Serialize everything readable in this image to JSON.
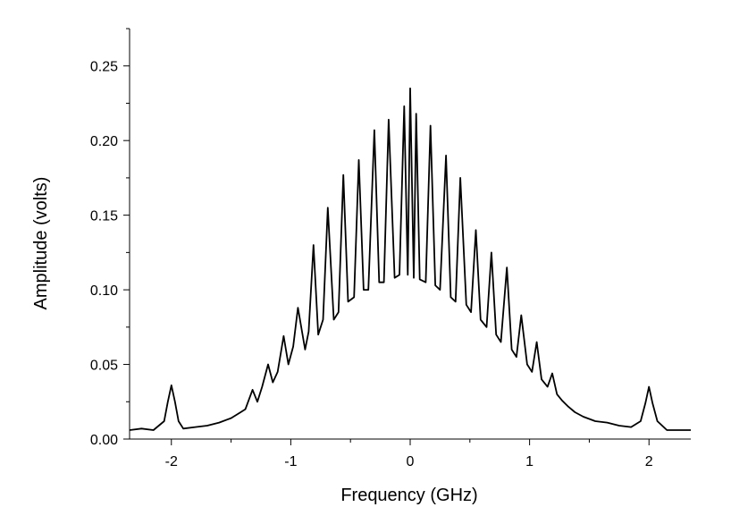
{
  "chart_data": {
    "type": "line",
    "title": "",
    "xlabel": "Frequency (GHz)",
    "ylabel": "Amplitude (volts)",
    "xlim": [
      -2.35,
      2.35
    ],
    "ylim": [
      0,
      0.275
    ],
    "xticks": [
      {
        "value": -2,
        "label": "-2"
      },
      {
        "value": -1,
        "label": "-1"
      },
      {
        "value": 0,
        "label": "0"
      },
      {
        "value": 1,
        "label": "1"
      },
      {
        "value": 2,
        "label": "2"
      }
    ],
    "yticks": [
      {
        "value": 0.0,
        "label": "0.00"
      },
      {
        "value": 0.05,
        "label": "0.05"
      },
      {
        "value": 0.1,
        "label": "0.10"
      },
      {
        "value": 0.15,
        "label": "0.15"
      },
      {
        "value": 0.2,
        "label": "0.20"
      },
      {
        "value": 0.25,
        "label": "0.25"
      }
    ],
    "grid": false,
    "legend": "none",
    "line_color": "#000000",
    "series": [
      {
        "x": [
          -2.35,
          -2.25,
          -2.15,
          -2.06,
          -2.03,
          -2.0,
          -1.97,
          -1.94,
          -1.9,
          -1.8,
          -1.7,
          -1.6,
          -1.5,
          -1.42,
          -1.38,
          -1.32,
          -1.28,
          -1.24,
          -1.19,
          -1.15,
          -1.11,
          -1.06,
          -1.02,
          -0.98,
          -0.94,
          -0.88,
          -0.85,
          -0.81,
          -0.77,
          -0.73,
          -0.69,
          -0.64,
          -0.6,
          -0.56,
          -0.52,
          -0.47,
          -0.43,
          -0.39,
          -0.35,
          -0.3,
          -0.26,
          -0.22,
          -0.18,
          -0.13,
          -0.09,
          -0.05,
          -0.02,
          0.0,
          0.03,
          0.05,
          0.08,
          0.13,
          0.17,
          0.21,
          0.25,
          0.3,
          0.34,
          0.38,
          0.42,
          0.47,
          0.51,
          0.55,
          0.59,
          0.64,
          0.68,
          0.72,
          0.76,
          0.81,
          0.85,
          0.89,
          0.93,
          0.98,
          1.02,
          1.06,
          1.1,
          1.15,
          1.19,
          1.23,
          1.27,
          1.32,
          1.38,
          1.45,
          1.55,
          1.65,
          1.75,
          1.85,
          1.93,
          1.97,
          2.0,
          2.03,
          2.07,
          2.15,
          2.25,
          2.35
        ],
        "y": [
          0.006,
          0.007,
          0.006,
          0.012,
          0.025,
          0.036,
          0.025,
          0.012,
          0.007,
          0.008,
          0.009,
          0.011,
          0.014,
          0.018,
          0.02,
          0.033,
          0.025,
          0.035,
          0.05,
          0.038,
          0.045,
          0.069,
          0.05,
          0.062,
          0.088,
          0.06,
          0.072,
          0.13,
          0.07,
          0.08,
          0.155,
          0.08,
          0.085,
          0.177,
          0.092,
          0.095,
          0.187,
          0.1,
          0.1,
          0.207,
          0.105,
          0.105,
          0.214,
          0.108,
          0.11,
          0.223,
          0.11,
          0.235,
          0.108,
          0.218,
          0.107,
          0.105,
          0.21,
          0.103,
          0.1,
          0.19,
          0.095,
          0.092,
          0.175,
          0.09,
          0.085,
          0.14,
          0.08,
          0.075,
          0.125,
          0.07,
          0.065,
          0.115,
          0.06,
          0.055,
          0.083,
          0.05,
          0.045,
          0.065,
          0.04,
          0.035,
          0.044,
          0.03,
          0.026,
          0.022,
          0.018,
          0.015,
          0.012,
          0.011,
          0.009,
          0.008,
          0.012,
          0.024,
          0.035,
          0.024,
          0.012,
          0.006,
          0.006,
          0.006
        ]
      }
    ]
  }
}
